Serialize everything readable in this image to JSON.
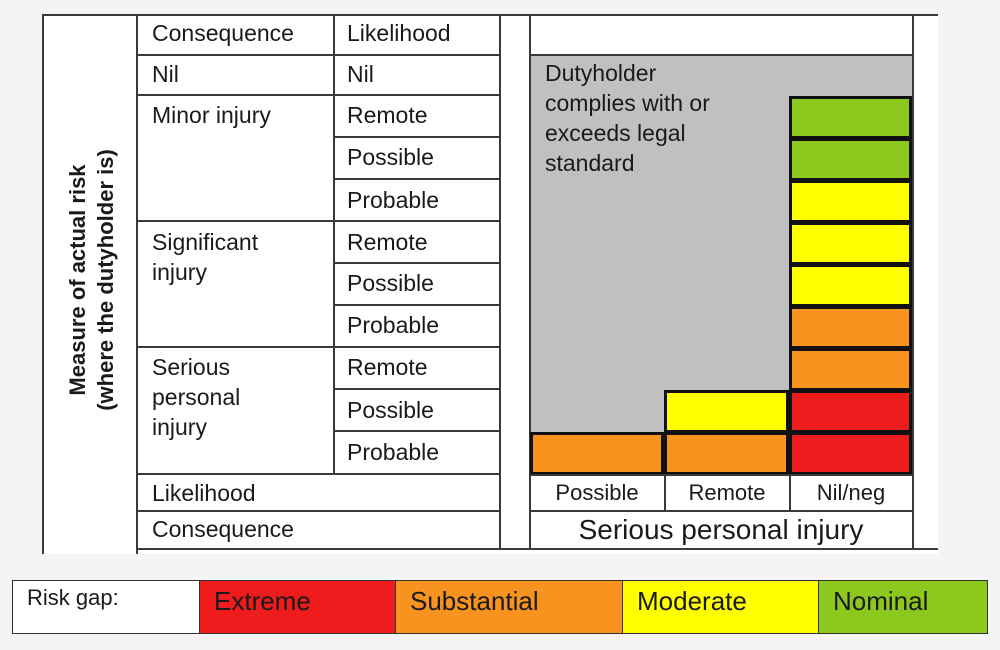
{
  "y_axis_label": {
    "line1": "Measure of actual risk",
    "line2": "(where the dutyholder is)"
  },
  "left_table": {
    "header": {
      "consequence": "Consequence",
      "likelihood": "Likelihood"
    },
    "nil_row": {
      "consequence": "Nil",
      "likelihood": "Nil"
    },
    "groups": [
      {
        "consequence": "Minor injury",
        "likelihoods": [
          "Remote",
          "Possible",
          "Probable"
        ]
      },
      {
        "consequence": "Significant\ninjury",
        "likelihoods": [
          "Remote",
          "Possible",
          "Probable"
        ]
      },
      {
        "consequence": "Serious\npersonal\ninjury",
        "likelihoods": [
          "Remote",
          "Possible",
          "Probable"
        ]
      }
    ],
    "footer": {
      "likelihood": "Likelihood",
      "consequence": "Consequence"
    }
  },
  "right_chart": {
    "grey_area_text": "Dutyholder\ncomplies with or\nexceeds legal\nstandard",
    "columns": [
      "Possible",
      "Remote",
      "Nil/neg"
    ],
    "consequence_label": "Serious personal injury",
    "column_levels": [
      {
        "likelihood": "Possible",
        "cells": [
          "substantial"
        ]
      },
      {
        "likelihood": "Remote",
        "cells": [
          "substantial",
          "moderate"
        ]
      },
      {
        "likelihood": "Nil/neg",
        "cells": [
          "extreme",
          "extreme",
          "substantial",
          "substantial",
          "moderate",
          "moderate",
          "moderate",
          "nominal",
          "nominal"
        ]
      }
    ]
  },
  "legend": {
    "title": "Risk gap:",
    "items": [
      {
        "key": "extreme",
        "label": "Extreme",
        "color": "#ee1c1c"
      },
      {
        "key": "substantial",
        "label": "Substantial",
        "color": "#f7931e"
      },
      {
        "key": "moderate",
        "label": "Moderate",
        "color": "#ffff00"
      },
      {
        "key": "nominal",
        "label": "Nominal",
        "color": "#8cc81e"
      }
    ]
  },
  "colors": {
    "grey_area": "#c0c0c0",
    "border": "#111111"
  }
}
